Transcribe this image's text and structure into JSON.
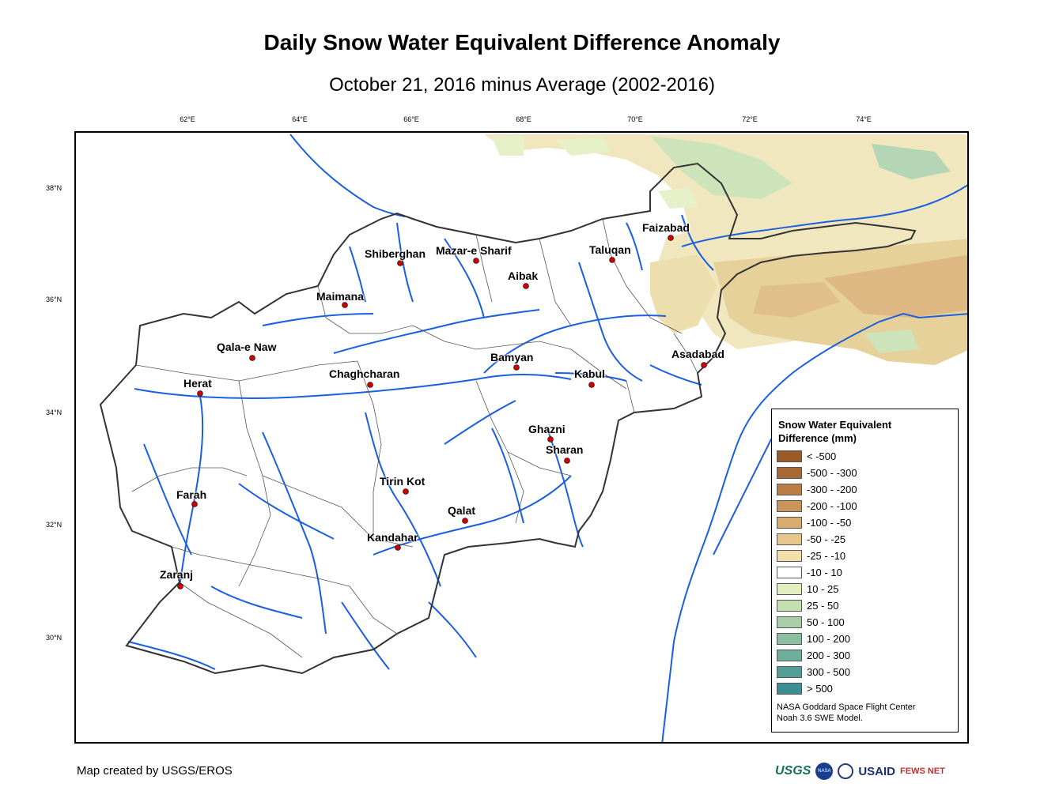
{
  "title": "Daily Snow Water Equivalent Difference Anomaly",
  "subtitle": "October 21, 2016 minus Average (2002-2016)",
  "grid": {
    "longitudes": [
      "62°E",
      "64°E",
      "66°E",
      "68°E",
      "70°E",
      "72°E",
      "74°E"
    ],
    "latitudes": [
      "38°N",
      "36°N",
      "34°N",
      "32°N",
      "30°N"
    ]
  },
  "cities": [
    {
      "name": "Faizabad"
    },
    {
      "name": "Shiberghan"
    },
    {
      "name": "Mazar-e Sharif"
    },
    {
      "name": "Taluqan"
    },
    {
      "name": "Aibak"
    },
    {
      "name": "Maimana"
    },
    {
      "name": "Qala-e Naw"
    },
    {
      "name": "Asadabad"
    },
    {
      "name": "Bamyan"
    },
    {
      "name": "Herat"
    },
    {
      "name": "Chaghcharan"
    },
    {
      "name": "Kabul"
    },
    {
      "name": "Ghazni"
    },
    {
      "name": "Sharan"
    },
    {
      "name": "Tirin Kot"
    },
    {
      "name": "Farah"
    },
    {
      "name": "Qalat"
    },
    {
      "name": "Kandahar"
    },
    {
      "name": "Zaranj"
    }
  ],
  "legend": {
    "title_line1": "Snow Water Equivalent",
    "title_line2": "Difference (mm)",
    "items": [
      {
        "label": "< -500",
        "color": "#9a5a28"
      },
      {
        "label": "-500 - -300",
        "color": "#a76a36"
      },
      {
        "label": "-300 - -200",
        "color": "#b97d45"
      },
      {
        "label": "-200 - -100",
        "color": "#c99459"
      },
      {
        "label": "-100 - -50",
        "color": "#d8ac6e"
      },
      {
        "label": "-50 - -25",
        "color": "#e6c78a"
      },
      {
        "label": "-25 - -10",
        "color": "#f1e0aa"
      },
      {
        "label": "-10 - 10",
        "color": "#ffffff"
      },
      {
        "label": "10 - 25",
        "color": "#e3efc0"
      },
      {
        "label": "25 - 50",
        "color": "#c5e0b0"
      },
      {
        "label": "50 - 100",
        "color": "#a8cfa8"
      },
      {
        "label": "100 - 200",
        "color": "#8cbfa2"
      },
      {
        "label": "200 - 300",
        "color": "#6fae9c"
      },
      {
        "label": "300 - 500",
        "color": "#549e98"
      },
      {
        "label": "> 500",
        "color": "#3a8e94"
      }
    ],
    "credit_line1": "NASA Goddard Space Flight Center",
    "credit_line2": "Noah 3.6 SWE Model."
  },
  "footer": {
    "credit": "Map created by USGS/EROS",
    "logos": [
      "USGS",
      "NASA",
      "USAID",
      "FEWS NET"
    ]
  },
  "colors": {
    "river": "#1a5fe0",
    "boundary": "#333333",
    "city_marker": "#cc0000"
  }
}
